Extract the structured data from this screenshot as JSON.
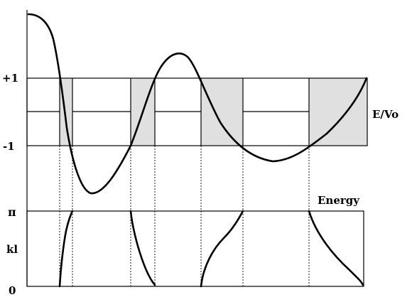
{
  "labels": {
    "plus_one": "+1",
    "minus_one": "-1",
    "ratio": "E/Vo",
    "energy": "Energy",
    "pi": "π",
    "kl": "kl",
    "zero": "0"
  }
}
